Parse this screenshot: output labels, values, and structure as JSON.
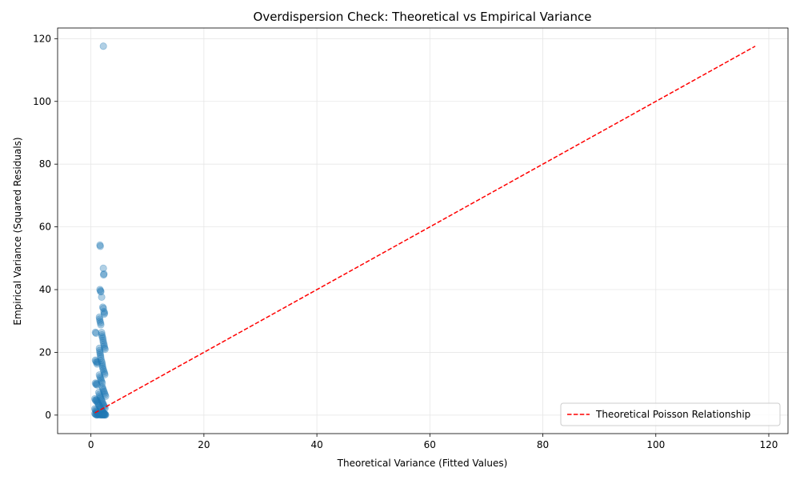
{
  "chart_data": {
    "type": "scatter",
    "title": "Overdispersion Check: Theoretical vs Empirical Variance",
    "xlabel": "Theoretical Variance (Fitted Values)",
    "ylabel": "Empirical Variance (Squared Residuals)",
    "xlim": [
      -5.9,
      123.4
    ],
    "ylim": [
      -5.9,
      123.4
    ],
    "xticks": [
      0,
      20,
      40,
      60,
      80,
      100,
      120
    ],
    "yticks": [
      0,
      20,
      40,
      60,
      80,
      100,
      120
    ],
    "grid": true,
    "legend_position": "lower right",
    "colors": {
      "points": "#1f77b4",
      "line": "#ff0000"
    },
    "series": [
      {
        "name": "",
        "kind": "scatter",
        "points": [
          [
            2.2,
            117.6
          ],
          [
            1.6,
            54.2
          ],
          [
            1.65,
            53.8
          ],
          [
            2.2,
            46.8
          ],
          [
            2.3,
            45.0
          ],
          [
            2.25,
            44.7
          ],
          [
            1.6,
            40.0
          ],
          [
            1.7,
            39.6
          ],
          [
            1.75,
            39.3
          ],
          [
            1.9,
            37.6
          ],
          [
            2.1,
            34.4
          ],
          [
            2.2,
            34.0
          ],
          [
            2.3,
            33.0
          ],
          [
            2.4,
            32.6
          ],
          [
            2.35,
            32.2
          ],
          [
            1.5,
            31.2
          ],
          [
            1.55,
            30.6
          ],
          [
            1.6,
            30.0
          ],
          [
            1.7,
            29.4
          ],
          [
            1.75,
            28.8
          ],
          [
            0.8,
            26.4
          ],
          [
            0.9,
            26.1
          ],
          [
            1.9,
            26.3
          ],
          [
            1.95,
            25.6
          ],
          [
            2.0,
            25.0
          ],
          [
            2.1,
            24.5
          ],
          [
            2.15,
            23.8
          ],
          [
            2.2,
            23.2
          ],
          [
            2.3,
            22.6
          ],
          [
            2.35,
            22.0
          ],
          [
            2.4,
            21.4
          ],
          [
            2.5,
            21.0
          ],
          [
            1.5,
            21.3
          ],
          [
            1.55,
            20.6
          ],
          [
            1.6,
            20.0
          ],
          [
            1.65,
            19.4
          ],
          [
            1.7,
            18.8
          ],
          [
            1.75,
            18.2
          ],
          [
            0.8,
            17.5
          ],
          [
            0.9,
            17.1
          ],
          [
            1.0,
            16.8
          ],
          [
            1.1,
            16.3
          ],
          [
            1.2,
            16.9
          ],
          [
            1.85,
            17.4
          ],
          [
            1.95,
            16.8
          ],
          [
            2.0,
            16.2
          ],
          [
            2.05,
            15.6
          ],
          [
            2.1,
            15.0
          ],
          [
            2.2,
            14.5
          ],
          [
            2.3,
            13.9
          ],
          [
            2.4,
            13.4
          ],
          [
            2.45,
            12.9
          ],
          [
            1.5,
            12.8
          ],
          [
            1.6,
            12.2
          ],
          [
            1.7,
            11.7
          ],
          [
            1.8,
            11.2
          ],
          [
            1.9,
            10.7
          ],
          [
            2.0,
            10.2
          ],
          [
            0.8,
            10.2
          ],
          [
            0.9,
            9.8
          ],
          [
            1.0,
            10.0
          ],
          [
            1.1,
            9.6
          ],
          [
            2.0,
            9.0
          ],
          [
            2.1,
            8.5
          ],
          [
            2.2,
            8.0
          ],
          [
            2.3,
            7.5
          ],
          [
            2.4,
            7.0
          ],
          [
            2.5,
            6.5
          ],
          [
            2.6,
            6.0
          ],
          [
            1.4,
            7.2
          ],
          [
            1.5,
            6.6
          ],
          [
            1.6,
            6.1
          ],
          [
            1.7,
            5.6
          ],
          [
            1.8,
            5.1
          ],
          [
            1.9,
            4.7
          ],
          [
            0.7,
            5.2
          ],
          [
            0.8,
            4.8
          ],
          [
            0.9,
            4.5
          ],
          [
            1.0,
            4.9
          ],
          [
            1.1,
            4.4
          ],
          [
            1.2,
            4.0
          ],
          [
            2.0,
            4.2
          ],
          [
            2.1,
            3.8
          ],
          [
            2.2,
            3.4
          ],
          [
            2.3,
            3.0
          ],
          [
            2.4,
            2.6
          ],
          [
            2.5,
            2.2
          ],
          [
            1.3,
            3.6
          ],
          [
            1.4,
            3.2
          ],
          [
            1.5,
            2.9
          ],
          [
            1.6,
            2.5
          ],
          [
            1.7,
            2.2
          ],
          [
            1.8,
            1.9
          ],
          [
            0.7,
            2.0
          ],
          [
            0.8,
            1.6
          ],
          [
            0.9,
            1.3
          ],
          [
            1.0,
            1.1
          ],
          [
            1.1,
            0.9
          ],
          [
            1.2,
            0.7
          ],
          [
            1.9,
            1.5
          ],
          [
            2.0,
            1.2
          ],
          [
            2.1,
            1.0
          ],
          [
            2.2,
            0.8
          ],
          [
            2.3,
            0.6
          ],
          [
            2.4,
            0.4
          ],
          [
            2.5,
            0.3
          ],
          [
            0.7,
            0.5
          ],
          [
            0.8,
            0.3
          ],
          [
            0.9,
            0.2
          ],
          [
            1.0,
            0.1
          ],
          [
            1.1,
            0.05
          ],
          [
            1.2,
            0.15
          ],
          [
            1.3,
            0.4
          ],
          [
            1.4,
            0.2
          ],
          [
            1.5,
            0.1
          ],
          [
            1.6,
            0.3
          ],
          [
            1.7,
            0.05
          ],
          [
            1.8,
            0.2
          ],
          [
            1.9,
            0.1
          ],
          [
            2.0,
            0.05
          ],
          [
            2.1,
            0.2
          ],
          [
            2.2,
            0.1
          ],
          [
            2.3,
            0.05
          ],
          [
            2.4,
            0.15
          ],
          [
            2.5,
            0.05
          ],
          [
            2.6,
            0.1
          ]
        ]
      },
      {
        "name": "Theoretical Poisson Relationship",
        "kind": "line",
        "style": "dashed",
        "points": [
          [
            0.7,
            0.7
          ],
          [
            117.6,
            117.6
          ]
        ]
      }
    ]
  }
}
